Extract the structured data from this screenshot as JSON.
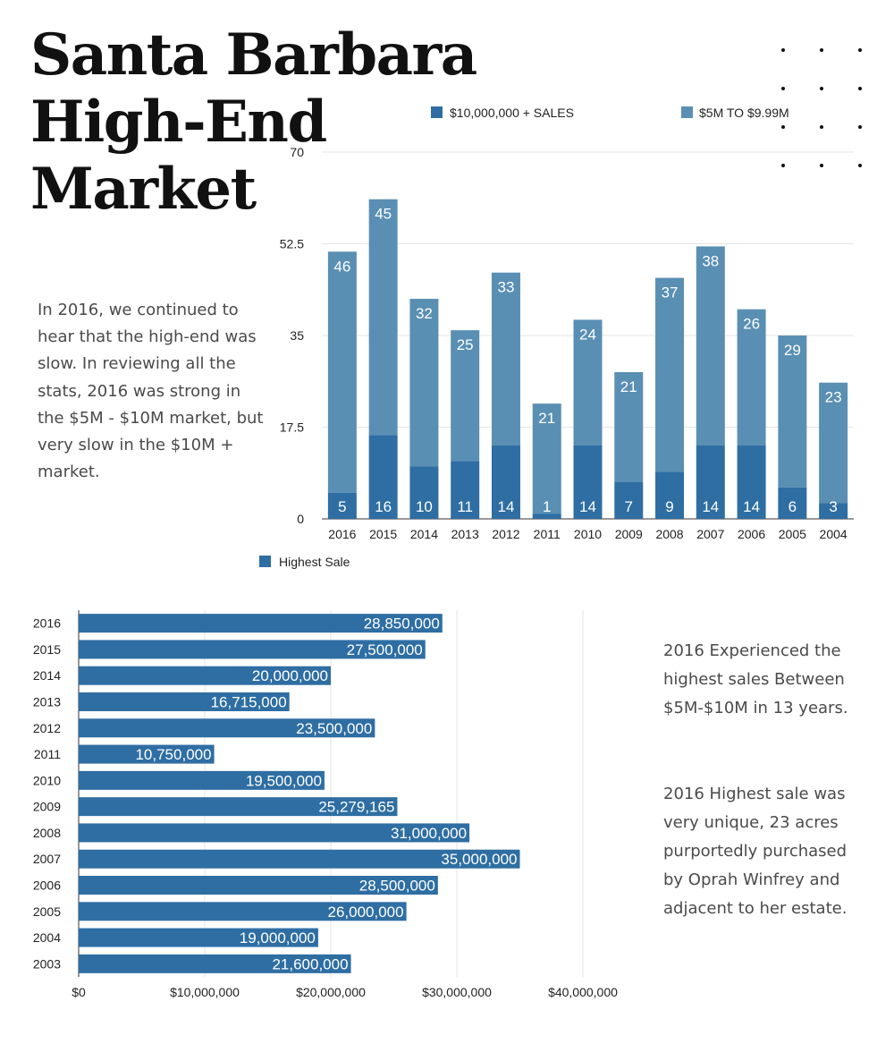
{
  "title_lines": [
    "Santa Barbara",
    "High-End",
    "Market"
  ],
  "left_text": "In 2016, we continued to hear that the high-end was slow.  In reviewing all the stats, 2016 was strong in the $5M - $10M market, but very slow in the $10M + market.",
  "right_text_1": "2016 Experienced the highest sales Between $5M-$10M in 13 years.",
  "right_text_2": "2016 Highest sale was very unique, 23 acres purportedly purchased by Oprah Winfrey and adjacent to her estate.",
  "colors": {
    "series_10m": "#2e6ea3",
    "series_5m": "#5a8fb4",
    "highest_sale": "#2e6ea3",
    "grid": "#e6e6e6",
    "axis": "#333333"
  },
  "chart_data": [
    {
      "type": "bar",
      "stacked": true,
      "categories": [
        "2016",
        "2015",
        "2014",
        "2013",
        "2012",
        "2011",
        "2010",
        "2009",
        "2008",
        "2007",
        "2006",
        "2005",
        "2004"
      ],
      "series": [
        {
          "name": "$10,000,000 + SALES",
          "values": [
            5,
            16,
            10,
            11,
            14,
            1,
            14,
            7,
            9,
            14,
            14,
            6,
            3
          ]
        },
        {
          "name": "$5M TO $9.99M",
          "values": [
            46,
            45,
            32,
            25,
            33,
            21,
            24,
            21,
            37,
            38,
            26,
            29,
            23
          ]
        }
      ],
      "ylim": [
        0,
        70
      ],
      "yticks": [
        "0",
        "17.5",
        "35",
        "52.5",
        "70"
      ],
      "grid": true,
      "legend": "top"
    },
    {
      "type": "bar",
      "orientation": "horizontal",
      "categories": [
        "2016",
        "2015",
        "2014",
        "2013",
        "2012",
        "2011",
        "2010",
        "2009",
        "2008",
        "2007",
        "2006",
        "2005",
        "2004",
        "2003"
      ],
      "series": [
        {
          "name": "Highest Sale",
          "values": [
            28850000,
            27500000,
            20000000,
            16715000,
            23500000,
            10750000,
            19500000,
            25279165,
            31000000,
            35000000,
            28500000,
            26000000,
            19000000,
            21600000
          ],
          "labels": [
            "28,850,000",
            "27,500,000",
            "20,000,000",
            "16,715,000",
            "23,500,000",
            "10,750,000",
            "19,500,000",
            "25,279,165",
            "31,000,000",
            "35,000,000",
            "28,500,000",
            "26,000,000",
            "19,000,000",
            "21,600,000"
          ]
        }
      ],
      "xlim": [
        0,
        40000000
      ],
      "xticks": [
        "$0",
        "$10,000,000",
        "$20,000,000",
        "$30,000,000",
        "$40,000,000"
      ],
      "grid": true,
      "legend": "top-left"
    }
  ]
}
